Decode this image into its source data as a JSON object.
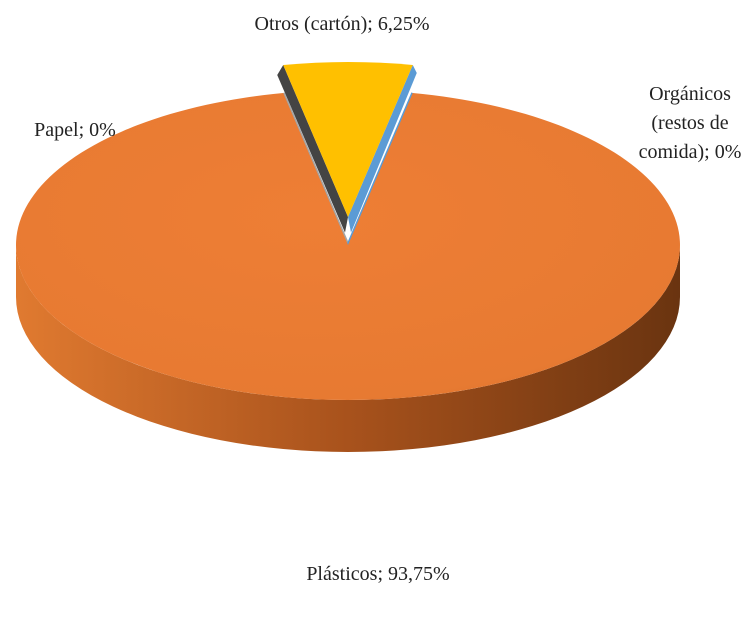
{
  "chart_data": {
    "type": "pie",
    "categories": [
      "Papel",
      "Otros (cartón)",
      "Orgánicos (restos de comida)",
      "Plásticos"
    ],
    "values": [
      0,
      6.25,
      0,
      93.75
    ],
    "value_labels": [
      "0%",
      "6,25%",
      "0%",
      "93,75%"
    ],
    "label_separator": "; ",
    "colors": [
      "#a5a5a5",
      "#ffc000",
      "#5b9bd5",
      "#ed7d31"
    ],
    "three_d": true,
    "exploded": [
      1
    ]
  }
}
